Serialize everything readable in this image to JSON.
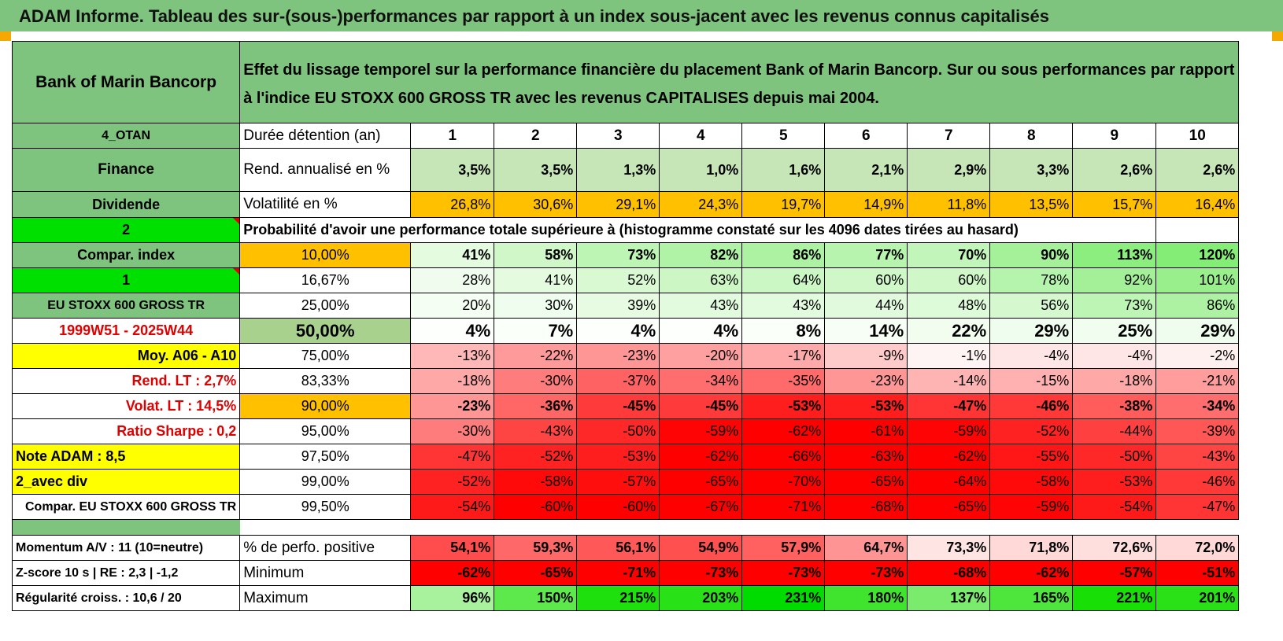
{
  "title": "ADAM Informe. Tableau des sur-(sous-)performances par rapport à un index sous-jacent avec les revenus connus capitalisés",
  "header": {
    "company": "Bank of Marin Bancorp",
    "description_line1": "Effet du lissage temporel sur la performance financière du placement Bank of Marin Bancorp. Sur ou sous performances par rapport",
    "description_line2": "à l'indice EU STOXX 600 GROSS TR avec les revenus CAPITALISES depuis mai 2004."
  },
  "left_labels": {
    "code": "4_OTAN",
    "sector": "Finance",
    "type": "Dividende",
    "num2": "2",
    "compar_index": "Compar. index",
    "num1": "1",
    "index_name": "EU STOXX 600 GROSS TR",
    "period": "1999W51 - 2025W44",
    "moy": "Moy. A06 - A10",
    "rend_lt": "Rend. LT :    2,7%",
    "volat_lt": "Volat. LT :    14,5%",
    "sharpe": "Ratio Sharpe :     0,2",
    "note": "Note ADAM : 8,5",
    "avec_div": "2_avec div",
    "compar_full": "Compar. EU STOXX 600 GROSS TR",
    "momentum": "Momentum A/V : 11 (10=neutre)",
    "zscore": "Z-score 10 s | RE : 2,3 | -1,2",
    "regularite": "Régularité croiss. : 10,6 / 20"
  },
  "row_labels": {
    "duree": "Durée détention (an)",
    "rend": "Rend. annualisé en %",
    "volat": "Volatilité en %",
    "proba": "Probabilité d'avoir une performance totale supérieure à (histogramme constaté sur les 4096 dates tirées au hasard)",
    "pct_pos": "% de perfo. positive",
    "minimum": "Minimum",
    "maximum": "Maximum"
  },
  "years": [
    "1",
    "2",
    "3",
    "4",
    "5",
    "6",
    "7",
    "8",
    "9",
    "10"
  ],
  "rend": [
    "3,5%",
    "3,5%",
    "1,3%",
    "1,0%",
    "1,6%",
    "2,1%",
    "2,9%",
    "3,3%",
    "2,6%",
    "2,6%"
  ],
  "volat": [
    "26,8%",
    "30,6%",
    "29,1%",
    "24,3%",
    "19,7%",
    "14,9%",
    "11,8%",
    "13,5%",
    "15,7%",
    "16,4%"
  ],
  "proba_rows": [
    {
      "threshold": "10,00%",
      "values": [
        "41%",
        "58%",
        "73%",
        "82%",
        "86%",
        "77%",
        "70%",
        "90%",
        "113%",
        "120%"
      ],
      "colors": [
        "#e4fbe0",
        "#cff7c8",
        "#bdf5b4",
        "#b0f3a6",
        "#acf2a2",
        "#b7f4ae",
        "#c2f5b9",
        "#a5f19a",
        "#8cee7f",
        "#84ed76"
      ]
    },
    {
      "threshold": "16,67%",
      "values": [
        "28%",
        "41%",
        "52%",
        "63%",
        "64%",
        "60%",
        "60%",
        "78%",
        "92%",
        "101%"
      ],
      "colors": [
        "#f0fdee",
        "#e4fbe0",
        "#d9f9d3",
        "#ccf7c5",
        "#cbf7c4",
        "#cff7c8",
        "#cff7c8",
        "#b5f4ac",
        "#a3f098",
        "#98ef8c"
      ]
    },
    {
      "threshold": "25,00%",
      "values": [
        "20%",
        "30%",
        "39%",
        "43%",
        "43%",
        "44%",
        "48%",
        "56%",
        "73%",
        "86%"
      ],
      "colors": [
        "#f5fef3",
        "#eefded",
        "#e6fbe2",
        "#e2fbde",
        "#e2fbde",
        "#e1fadd",
        "#ddfad9",
        "#d5f8cf",
        "#bdf5b4",
        "#acf2a2"
      ]
    },
    {
      "threshold": "50,00%",
      "values": [
        "4%",
        "7%",
        "4%",
        "4%",
        "8%",
        "14%",
        "22%",
        "29%",
        "25%",
        "29%"
      ],
      "colors": [
        "#fdfffd",
        "#fbfffa",
        "#fdfffd",
        "#fdfffd",
        "#fafffa",
        "#f6fef5",
        "#f2fdf0",
        "#eefded",
        "#f0fdef",
        "#eefded"
      ]
    },
    {
      "threshold": "75,00%",
      "values": [
        "-13%",
        "-22%",
        "-23%",
        "-20%",
        "-17%",
        "-9%",
        "-1%",
        "-4%",
        "-4%",
        "-2%"
      ],
      "colors": [
        "#ffb8b8",
        "#ff9a9a",
        "#ff9696",
        "#ffa0a0",
        "#ffaaaa",
        "#ffcaca",
        "#fff4f4",
        "#ffe6e6",
        "#ffe6e6",
        "#fff0f0"
      ]
    },
    {
      "threshold": "83,33%",
      "values": [
        "-18%",
        "-30%",
        "-37%",
        "-34%",
        "-35%",
        "-23%",
        "-14%",
        "-15%",
        "-18%",
        "-21%"
      ],
      "colors": [
        "#ffa8a8",
        "#ff7c7c",
        "#ff6262",
        "#ff6e6e",
        "#ff6a6a",
        "#ff9696",
        "#ffb4b4",
        "#ffb0b0",
        "#ffa8a8",
        "#ff9c9c"
      ]
    },
    {
      "threshold": "90,00%",
      "values": [
        "-23%",
        "-36%",
        "-45%",
        "-45%",
        "-53%",
        "-53%",
        "-47%",
        "-46%",
        "-38%",
        "-34%"
      ],
      "colors": [
        "#ff9696",
        "#ff6666",
        "#ff3a3a",
        "#ff3a3a",
        "#ff1e1e",
        "#ff1e1e",
        "#ff3434",
        "#ff3838",
        "#ff5c5c",
        "#ff6e6e"
      ]
    },
    {
      "threshold": "95,00%",
      "values": [
        "-30%",
        "-43%",
        "-50%",
        "-59%",
        "-62%",
        "-61%",
        "-59%",
        "-52%",
        "-44%",
        "-39%"
      ],
      "colors": [
        "#ff7c7c",
        "#ff4444",
        "#ff2828",
        "#ff0404",
        "#ff0000",
        "#ff0000",
        "#ff0404",
        "#ff2222",
        "#ff4040",
        "#ff5656"
      ]
    },
    {
      "threshold": "97,50%",
      "values": [
        "-47%",
        "-52%",
        "-53%",
        "-62%",
        "-66%",
        "-63%",
        "-62%",
        "-55%",
        "-50%",
        "-43%"
      ],
      "colors": [
        "#ff3434",
        "#ff2222",
        "#ff1e1e",
        "#ff0000",
        "#ff0000",
        "#ff0000",
        "#ff0000",
        "#ff1616",
        "#ff2828",
        "#ff4444"
      ]
    },
    {
      "threshold": "99,00%",
      "values": [
        "-52%",
        "-58%",
        "-57%",
        "-65%",
        "-70%",
        "-65%",
        "-64%",
        "-58%",
        "-53%",
        "-46%"
      ],
      "colors": [
        "#ff2222",
        "#ff0a0a",
        "#ff0e0e",
        "#ff0000",
        "#ff0000",
        "#ff0000",
        "#ff0000",
        "#ff0a0a",
        "#ff1e1e",
        "#ff3838"
      ]
    },
    {
      "threshold": "99,50%",
      "values": [
        "-54%",
        "-60%",
        "-60%",
        "-67%",
        "-71%",
        "-68%",
        "-65%",
        "-59%",
        "-54%",
        "-47%"
      ],
      "colors": [
        "#ff1a1a",
        "#ff0000",
        "#ff0000",
        "#ff0000",
        "#ff0000",
        "#ff0000",
        "#ff0000",
        "#ff0404",
        "#ff1a1a",
        "#ff3434"
      ]
    }
  ],
  "pct_pos": [
    "54,1%",
    "59,3%",
    "56,1%",
    "54,9%",
    "57,9%",
    "64,7%",
    "73,3%",
    "71,8%",
    "72,6%",
    "72,0%"
  ],
  "pct_pos_colors": [
    "#ff4c4c",
    "#ff6868",
    "#ff5858",
    "#ff5050",
    "#ff6060",
    "#ff9494",
    "#ffe4e4",
    "#ffd8d8",
    "#ffdede",
    "#ffd8d8"
  ],
  "minimum": [
    "-62%",
    "-65%",
    "-71%",
    "-73%",
    "-73%",
    "-73%",
    "-68%",
    "-62%",
    "-57%",
    "-51%"
  ],
  "maximum": [
    "96%",
    "150%",
    "215%",
    "203%",
    "231%",
    "180%",
    "137%",
    "165%",
    "221%",
    "201%"
  ],
  "maximum_colors": [
    "#a8f29e",
    "#5de84c",
    "#1ee00c",
    "#28e116",
    "#00dc00",
    "#40e42e",
    "#7aeb6c",
    "#4ee63c",
    "#18df06",
    "#2ae118"
  ],
  "colors": {
    "header_green": "#7fc47e",
    "bright_green": "#00e000",
    "yellow": "#ffff00",
    "orange": "#ffc000",
    "rend_green": "#c6e6b8",
    "label_red": "#e00000"
  }
}
